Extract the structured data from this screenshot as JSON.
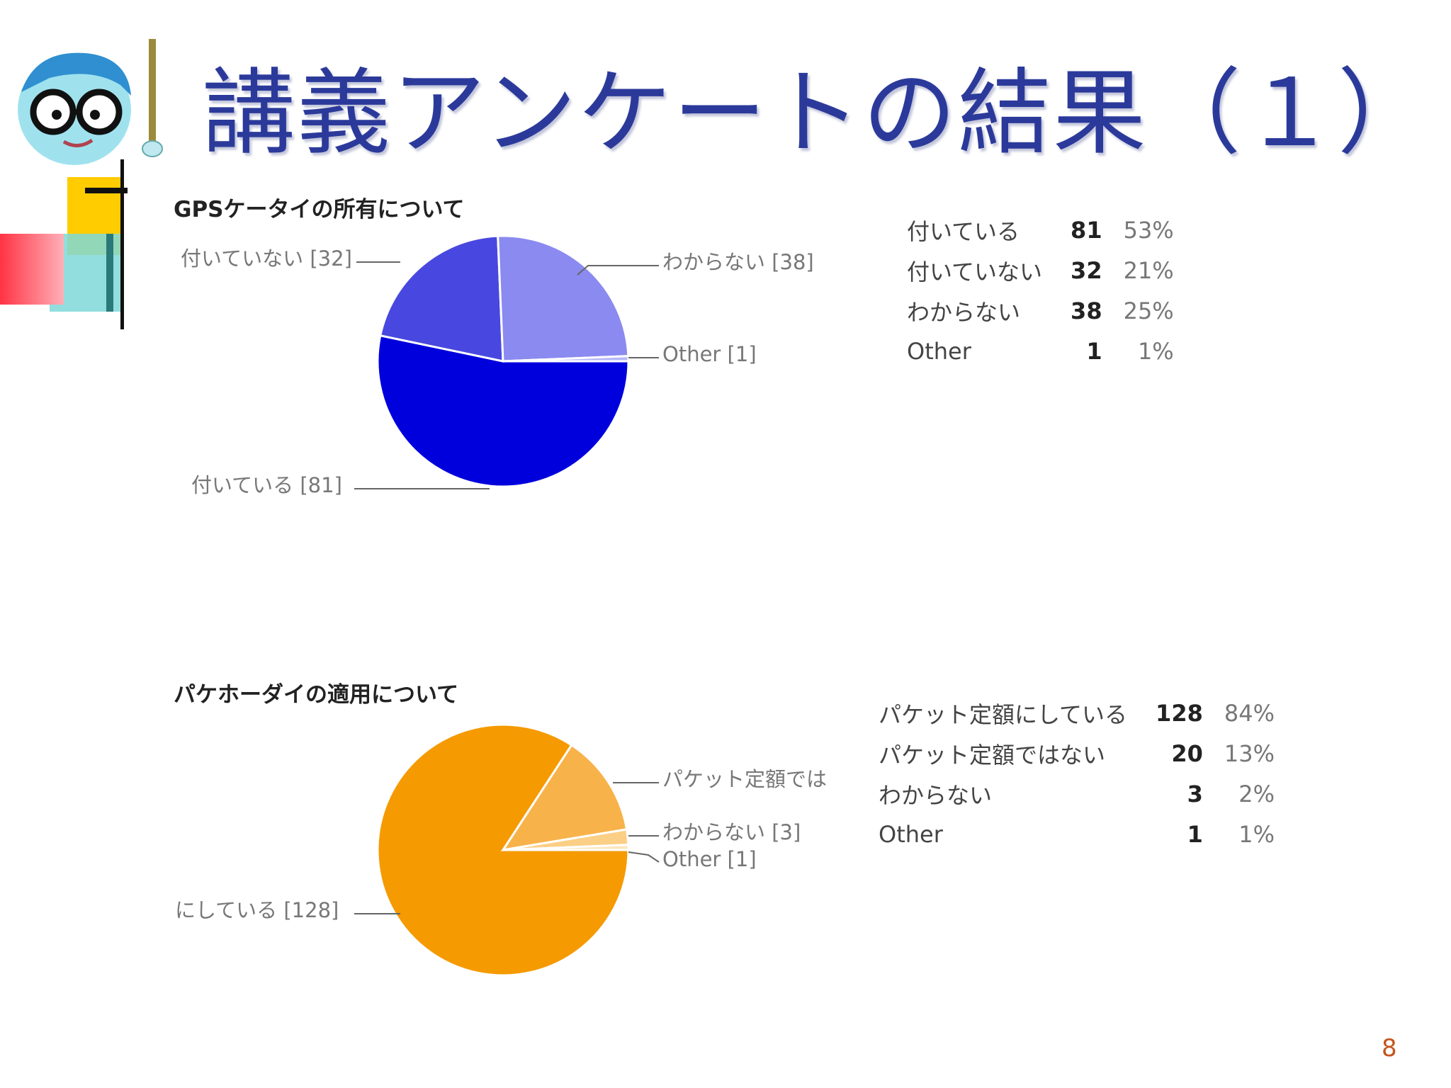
{
  "slide": {
    "title": "講義アンケートの結果（１）",
    "page_number": "8"
  },
  "colors": {
    "title": "#2b3a9a",
    "chart1": [
      "#0000dd",
      "#4848e0",
      "#8a8af0",
      "#b8b8f8"
    ],
    "chart2": [
      "#f59a00",
      "#f8b24a",
      "#fbcf85",
      "#fde6bb"
    ],
    "footer": "#c4551d"
  },
  "chart_data": [
    {
      "type": "pie",
      "title": "GPSケータイの所有について",
      "categories": [
        "付いている",
        "付いていない",
        "わからない",
        "Other"
      ],
      "values": [
        81,
        32,
        38,
        1
      ],
      "percents": [
        "53%",
        "21%",
        "25%",
        "1%"
      ],
      "pie_labels": [
        "付いている [81]",
        "付いていない [32]",
        "わからない [38]",
        "Other [1]"
      ],
      "legend": "right"
    },
    {
      "type": "pie",
      "title": "パケホーダイの適用について",
      "categories": [
        "パケット定額にしている",
        "パケット定額ではない",
        "わからない",
        "Other"
      ],
      "values": [
        128,
        20,
        3,
        1
      ],
      "percents": [
        "84%",
        "13%",
        "2%",
        "1%"
      ],
      "pie_labels": [
        "にしている [128]",
        "パケット定額では",
        "わからない [3]",
        "Other [1]"
      ],
      "legend": "right"
    }
  ]
}
